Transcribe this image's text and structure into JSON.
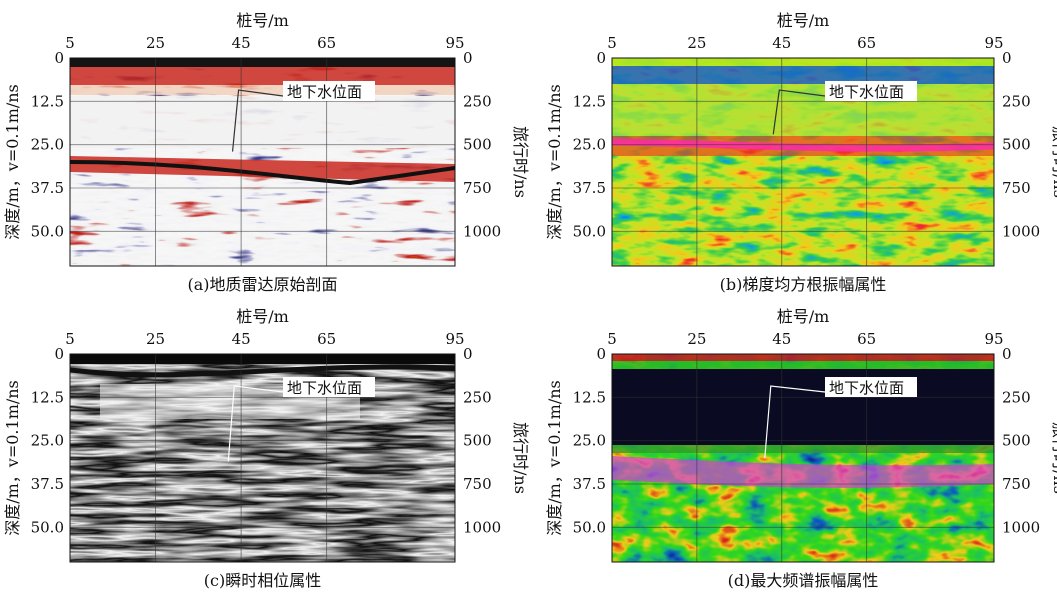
{
  "chart_data": [
    {
      "id": "a",
      "type": "heatmap",
      "colormap": "seismic-redblue",
      "caption": "(a)地质雷达原始剖面",
      "xlabel": "桩号/m",
      "ylabel_left": "深度/m，v=0.1m/ns",
      "ylabel_right": "旅行时/ns",
      "x_ticks": [
        "5",
        "25",
        "45",
        "65",
        "95"
      ],
      "x_range": [
        5,
        95
      ],
      "y_left_ticks": [
        "0",
        "12.5",
        "25.0",
        "37.5",
        "50.0"
      ],
      "y_left_range": [
        0,
        60
      ],
      "y_right_ticks": [
        "0",
        "250",
        "500",
        "750",
        "1000"
      ],
      "annotation": {
        "text": "地下水位面",
        "target_x": 43,
        "target_depth": 27
      }
    },
    {
      "id": "b",
      "type": "heatmap",
      "colormap": "jet",
      "caption": "(b)梯度均方根振幅属性",
      "xlabel": "桩号/m",
      "ylabel_left": "深度/m，v=0.1m/ns",
      "ylabel_right": "旅行时/ns",
      "x_ticks": [
        "5",
        "25",
        "45",
        "65",
        "95"
      ],
      "x_range": [
        5,
        95
      ],
      "y_left_ticks": [
        "0",
        "12.5",
        "25.0",
        "37.5",
        "50.0"
      ],
      "y_left_range": [
        0,
        60
      ],
      "y_right_ticks": [
        "0",
        "250",
        "500",
        "750",
        "1000"
      ],
      "annotation": {
        "text": "地下水位面",
        "target_x": 43,
        "target_depth": 22
      }
    },
    {
      "id": "c",
      "type": "heatmap",
      "colormap": "grayscale",
      "caption": "(c)瞬时相位属性",
      "xlabel": "桩号/m",
      "ylabel_left": "深度/m，v=0.1m/ns",
      "ylabel_right": "旅行时/ns",
      "x_ticks": [
        "5",
        "25",
        "45",
        "65",
        "95"
      ],
      "x_range": [
        5,
        95
      ],
      "y_left_ticks": [
        "0",
        "12.5",
        "25.0",
        "37.5",
        "50.0"
      ],
      "y_left_range": [
        0,
        60
      ],
      "y_right_ticks": [
        "0",
        "250",
        "500",
        "750",
        "1000"
      ],
      "annotation": {
        "text": "地下水位面",
        "target_x": 42,
        "target_depth": 31
      }
    },
    {
      "id": "d",
      "type": "heatmap",
      "colormap": "spectral-dark",
      "caption": "(d)最大频谱振幅属性",
      "xlabel": "桩号/m",
      "ylabel_left": "深度/m，v=0.1m/ns",
      "ylabel_right": "旅行时/ns",
      "x_ticks": [
        "5",
        "25",
        "45",
        "65",
        "95"
      ],
      "x_range": [
        5,
        95
      ],
      "y_left_ticks": [
        "0",
        "12.5",
        "25.0",
        "37.5",
        "50.0"
      ],
      "y_left_range": [
        0,
        60
      ],
      "y_right_ticks": [
        "0",
        "250",
        "500",
        "750",
        "1000"
      ],
      "annotation": {
        "text": "地下水位面",
        "target_x": 41,
        "target_depth": 30
      }
    }
  ]
}
